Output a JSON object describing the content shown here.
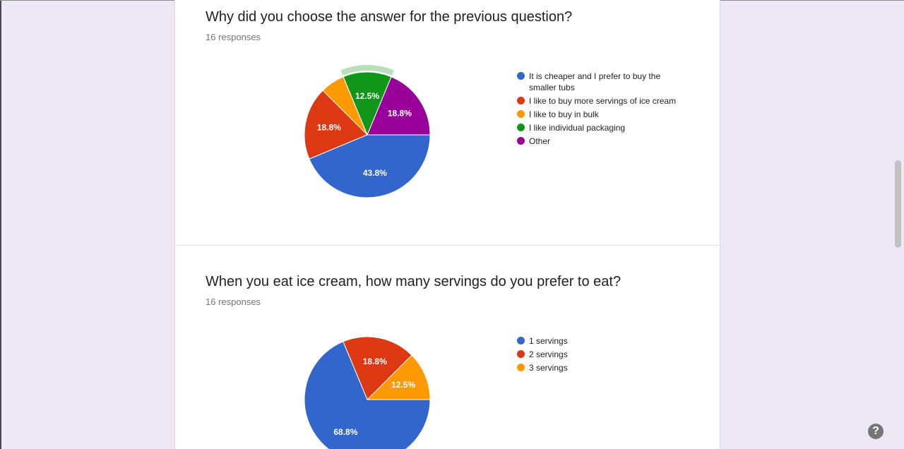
{
  "questions": [
    {
      "title": "Why did you choose the answer for the previous question?",
      "responses": "16 responses"
    },
    {
      "title": "When you eat ice cream, how many servings do you prefer to eat?",
      "responses": "16 responses"
    }
  ],
  "help_label": "?",
  "chart_data": [
    {
      "type": "pie",
      "categories": [
        "It is cheaper and I prefer to buy the smaller tubs",
        "I like to buy more servings of ice cream",
        "I like to buy in bulk",
        "I like individual packaging",
        "Other"
      ],
      "values": [
        43.8,
        18.8,
        6.3,
        12.5,
        18.8
      ],
      "labels": [
        "43.8%",
        "18.8%",
        "",
        "12.5%",
        "18.8%"
      ],
      "colors": [
        "#3366cc",
        "#dc3912",
        "#ff9900",
        "#109618",
        "#990099"
      ],
      "highlighted_index": 3,
      "legend_position": "right"
    },
    {
      "type": "pie",
      "categories": [
        "1 servings",
        "2 servings",
        "3 servings"
      ],
      "values": [
        68.8,
        18.8,
        12.5
      ],
      "labels": [
        "68.8%",
        "18.8%",
        "12.5%"
      ],
      "colors": [
        "#3366cc",
        "#dc3912",
        "#ff9900"
      ],
      "legend_position": "right"
    }
  ]
}
